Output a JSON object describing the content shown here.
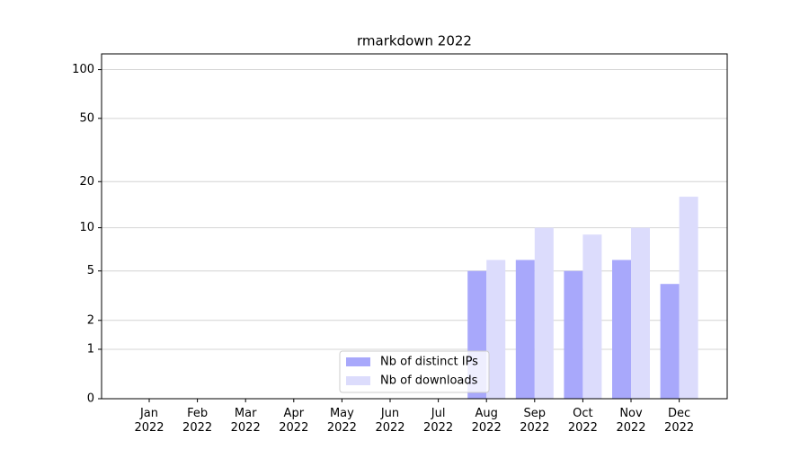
{
  "chart_data": {
    "type": "bar",
    "title": "rmarkdown 2022",
    "categories": [
      "Jan 2022",
      "Feb 2022",
      "Mar 2022",
      "Apr 2022",
      "May 2022",
      "Jun 2022",
      "Jul 2022",
      "Aug 2022",
      "Sep 2022",
      "Oct 2022",
      "Nov 2022",
      "Dec 2022"
    ],
    "series": [
      {
        "name": "Nb of distinct IPs",
        "color": "#a8a8fb",
        "values": [
          0,
          0,
          0,
          0,
          0,
          0,
          0,
          5,
          6,
          5,
          6,
          4
        ]
      },
      {
        "name": "Nb of downloads",
        "color": "#dcdcfc",
        "values": [
          0,
          0,
          0,
          0,
          0,
          0,
          0,
          6,
          10,
          9,
          10,
          16
        ]
      }
    ],
    "yscale": "log1p",
    "ylim": [
      0,
      125
    ],
    "yticks": [
      0,
      1,
      2,
      5,
      10,
      20,
      50,
      100
    ],
    "grid": true,
    "legend": "lower center"
  }
}
